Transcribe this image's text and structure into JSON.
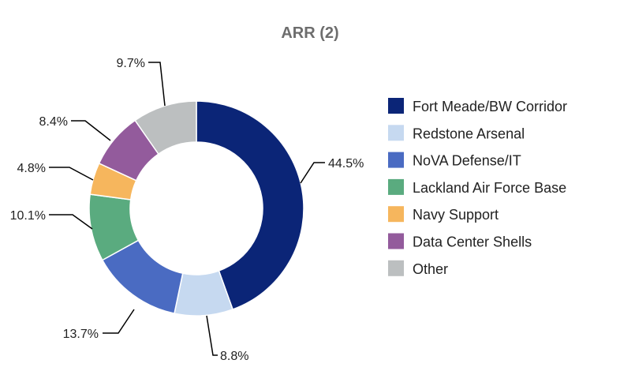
{
  "chart_data": {
    "type": "pie",
    "donut": true,
    "title": "ARR (2)",
    "legend_position": "right",
    "categories": [
      "Fort Meade/BW Corridor",
      "Redstone Arsenal",
      "NoVA Defense/IT",
      "Lackland Air Force Base",
      "Navy Support",
      "Data Center Shells",
      "Other"
    ],
    "values": [
      44.5,
      8.8,
      13.7,
      10.1,
      4.8,
      8.4,
      9.7
    ],
    "data_labels": [
      "44.5%",
      "8.8%",
      "13.7%",
      "10.1%",
      "4.8%",
      "8.4%",
      "9.7%"
    ],
    "colors": [
      "#0b2577",
      "#c6d9f0",
      "#4a6bc2",
      "#5aab7f",
      "#f6b65d",
      "#935b9c",
      "#bcbfc0"
    ]
  }
}
